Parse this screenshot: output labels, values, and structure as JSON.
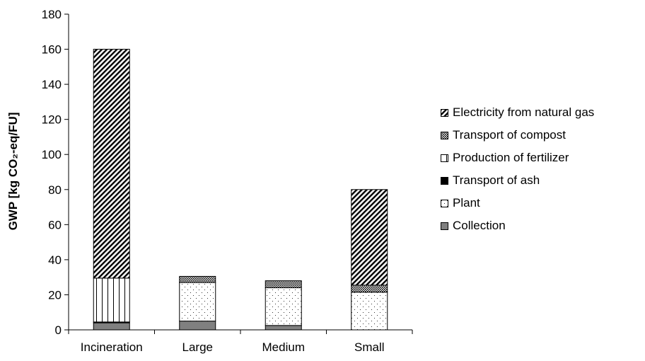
{
  "chart_data": {
    "type": "bar",
    "stacked": true,
    "categories": [
      "Incineration",
      "Large",
      "Medium",
      "Small"
    ],
    "series": [
      {
        "name": "Collection",
        "values": [
          4,
          5,
          2.5,
          0
        ],
        "pattern": "solid-gray"
      },
      {
        "name": "Plant",
        "values": [
          0,
          22,
          21.5,
          21.5
        ],
        "pattern": "dots"
      },
      {
        "name": "Transport of ash",
        "values": [
          0.5,
          0,
          0,
          0
        ],
        "pattern": "solid-black"
      },
      {
        "name": "Production of fertilizer",
        "values": [
          25,
          0,
          0,
          0
        ],
        "pattern": "vertical-lines"
      },
      {
        "name": "Transport of compost",
        "values": [
          0,
          3.5,
          4,
          4
        ],
        "pattern": "dense-check"
      },
      {
        "name": "Electricity from natural gas",
        "values": [
          130.5,
          0,
          0,
          54.5
        ],
        "pattern": "diagonal"
      }
    ],
    "ylabel": "GWP [kg CO₂-eq/FU]",
    "ylim": [
      0,
      180
    ],
    "yticks": [
      0,
      20,
      40,
      60,
      80,
      100,
      120,
      140,
      160,
      180
    ],
    "grid": false,
    "legend_position": "right",
    "legend_order": [
      "Electricity from natural gas",
      "Transport of compost",
      "Production of fertilizer",
      "Transport of ash",
      "Plant",
      "Collection"
    ]
  }
}
